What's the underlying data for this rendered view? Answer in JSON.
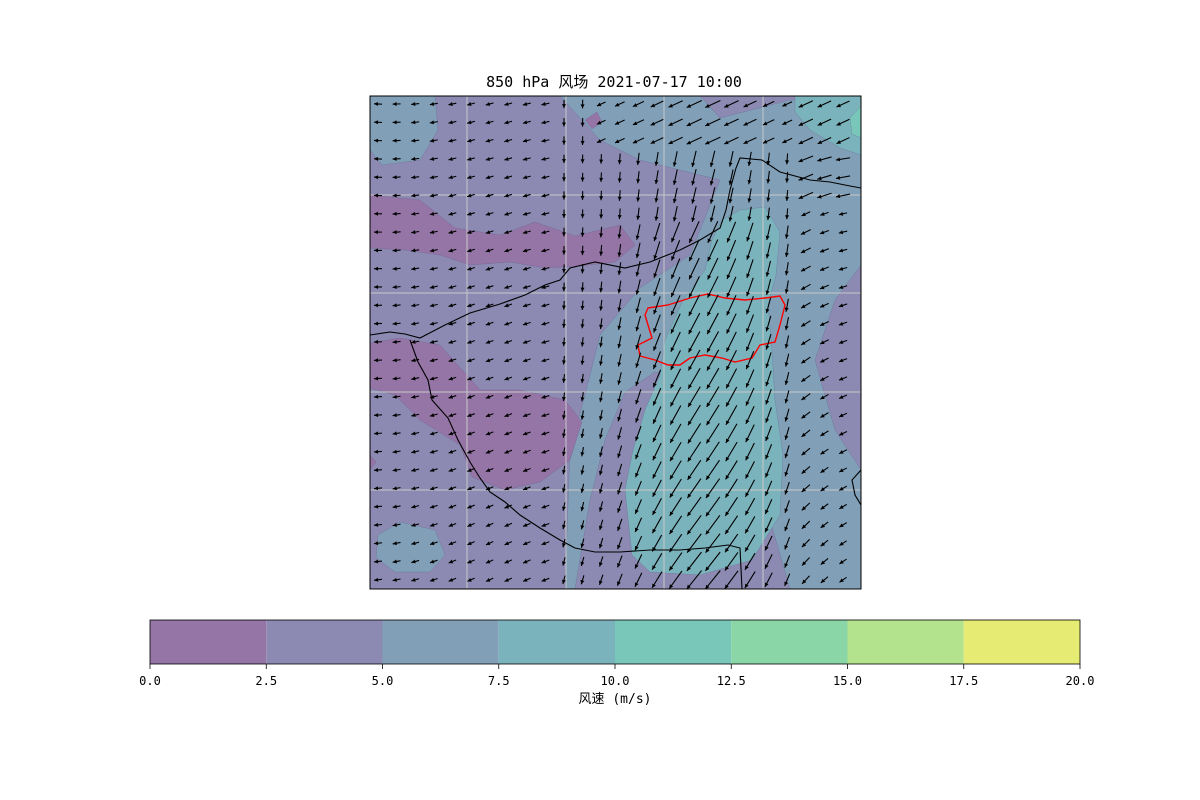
{
  "chart_data": {
    "type": "heatmap",
    "title": "850 hPa 风场 2021-07-17 10:00",
    "colorbar": {
      "label": "风速 (m/s)",
      "levels": [
        0,
        2.5,
        5,
        7.5,
        10,
        12.5,
        15,
        17.5,
        20
      ],
      "tick_labels": [
        "0.0",
        "2.5",
        "5.0",
        "7.5",
        "10.0",
        "12.5",
        "15.0",
        "17.5",
        "20.0"
      ],
      "colors": [
        "#9574a6",
        "#8c8ab2",
        "#81a0b8",
        "#7bb3bc",
        "#79c7b9",
        "#8ad6a6",
        "#b4e38e",
        "#e6ec73"
      ],
      "orientation": "horizontal",
      "placement": "bottom"
    },
    "grid": true,
    "map_features": [
      "wind vectors",
      "filled wind-speed contours",
      "province boundaries",
      "highlighted region outline (red)"
    ]
  }
}
